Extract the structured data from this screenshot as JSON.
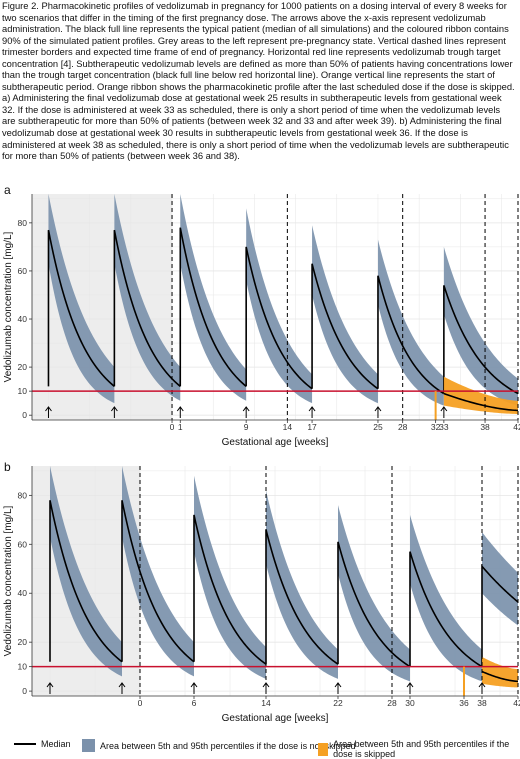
{
  "caption": "Figure 2. Pharmacokinetic profiles of vedolizumab in pregnancy for 1000 patients on a dosing interval of every 8 weeks for two scenarios that differ in the timing of the first pregnancy dose. The arrows above the x-axis represent vedolizumab administration. The black full line represents the typical patient (median of all simulations) and the coloured ribbon contains 90% of the simulated patient profiles. Grey areas to the left represent pre-pregnancy state. Vertical dashed lines represent trimester borders and expected time frame of end of pregnancy. Horizontal red line represents vedolizumab trough target concentration [4]. Subtherapeutic vedolizumab levels are defined as more than 50% of patients having concentrations lower than the trough target concentration (black full line below red horizontal line). Orange vertical line represents the start of subtherapeutic period. Orange ribbon shows the pharmacokinetic profile after the last scheduled dose if the dose is skipped. a) Administering the final vedolizumab dose at gestational week 25 results in subtherapeutic levels from gestational week 32. If the dose is administered at week 33 as scheduled, there is only a short period of time when the vedolizumab levels are subtherapeutic for more than 50% of patients (between week 32 and 33 and after week 39). b) Administering the final vedolizumab dose at gestational week 30 results in subtherapeutic levels from gestational week 36. If the dose is administered at week 38 as scheduled, there is only a short period of time when the vedolizumab levels are subtherapeutic for more than 50% of patients (between week 36 and 38).",
  "colors": {
    "band": "#7b91ab",
    "orange": "#f5a023",
    "target": "#c8102e",
    "grid": "#e6e6e6",
    "pre": "#ededed"
  },
  "legend": {
    "median": "Median",
    "band": "Area between 5th and 95th percentiles if the dose is not skipped",
    "skipped": "Area between 5th and 95th percentiles if the dose is skipped"
  },
  "chart_data": [
    {
      "panel": "a",
      "type": "line",
      "xlabel": "Gestational age [weeks]",
      "ylabel": "Vedolizumab concentration [mg/L]",
      "xlim": [
        -17,
        42
      ],
      "ylim": [
        -2,
        92
      ],
      "yticks": [
        0,
        10,
        20,
        40,
        60,
        80
      ],
      "xticks": [
        0,
        1,
        9,
        14,
        17,
        25,
        28,
        32,
        33,
        38,
        42
      ],
      "pre_pregnancy_end": 0,
      "dashed_lines": [
        0,
        14,
        28,
        38,
        42
      ],
      "target": 10,
      "doses": [
        -15,
        -7,
        1,
        9,
        17,
        25,
        33
      ],
      "dose_levels": [
        {
          "peak": 77,
          "trough": 12,
          "upper_peak": 92,
          "upper_trough": 20,
          "lower_peak": 63,
          "lower_trough": 5
        },
        {
          "peak": 77,
          "trough": 12,
          "upper_peak": 92,
          "upper_trough": 20,
          "lower_peak": 63,
          "lower_trough": 6
        },
        {
          "peak": 78,
          "trough": 12,
          "upper_peak": 92,
          "upper_trough": 19,
          "lower_peak": 63,
          "lower_trough": 6
        },
        {
          "peak": 70,
          "trough": 11,
          "upper_peak": 86,
          "upper_trough": 17,
          "lower_peak": 56,
          "lower_trough": 5
        },
        {
          "peak": 63,
          "trough": 11,
          "upper_peak": 79,
          "upper_trough": 17,
          "lower_peak": 50,
          "lower_trough": 5
        },
        {
          "peak": 58,
          "trough": 9,
          "upper_peak": 73,
          "upper_trough": 16,
          "lower_peak": 46,
          "lower_trough": 4
        },
        {
          "peak": 54,
          "trough": 11,
          "upper_peak": 70,
          "upper_trough": 18,
          "lower_peak": 42,
          "lower_trough": 5
        }
      ],
      "subtherapeutic_start": 32,
      "skipped_profile": {
        "start": 33,
        "end": 42,
        "median_start": 9,
        "median_end": 2,
        "upper_start": 16,
        "upper_end": 6,
        "lower_start": 4,
        "lower_end": 0.5
      }
    },
    {
      "panel": "b",
      "type": "line",
      "xlabel": "Gestational age [weeks]",
      "ylabel": "Vedolizumab concentration [mg/L]",
      "xlim": [
        -12,
        42
      ],
      "ylim": [
        -2,
        92
      ],
      "yticks": [
        0,
        10,
        20,
        40,
        60,
        80
      ],
      "xticks": [
        0,
        6,
        14,
        22,
        28,
        30,
        36,
        38,
        42
      ],
      "pre_pregnancy_end": 0,
      "dashed_lines": [
        0,
        14,
        28,
        38,
        42
      ],
      "target": 10,
      "doses": [
        -10,
        -2,
        6,
        14,
        22,
        30,
        38
      ],
      "dose_levels": [
        {
          "peak": 78,
          "trough": 12,
          "upper_peak": 92,
          "upper_trough": 20,
          "lower_peak": 63,
          "lower_trough": 6
        },
        {
          "peak": 78,
          "trough": 12,
          "upper_peak": 92,
          "upper_trough": 20,
          "lower_peak": 63,
          "lower_trough": 6
        },
        {
          "peak": 72,
          "trough": 11,
          "upper_peak": 88,
          "upper_trough": 18,
          "lower_peak": 57,
          "lower_trough": 5
        },
        {
          "peak": 66,
          "trough": 11,
          "upper_peak": 82,
          "upper_trough": 17,
          "lower_peak": 52,
          "lower_trough": 5
        },
        {
          "peak": 61,
          "trough": 10,
          "upper_peak": 76,
          "upper_trough": 17,
          "lower_peak": 48,
          "lower_trough": 4
        },
        {
          "peak": 57,
          "trough": 10,
          "upper_peak": 72,
          "upper_trough": 17,
          "lower_peak": 44,
          "lower_trough": 4
        },
        {
          "peak": 51,
          "trough": 26,
          "upper_peak": 65,
          "upper_trough": 36,
          "lower_peak": 40,
          "lower_trough": 18
        }
      ],
      "subtherapeutic_start": 36,
      "skipped_profile": {
        "start": 38,
        "end": 42,
        "median_start": 8,
        "median_end": 4,
        "upper_start": 14,
        "upper_end": 9,
        "lower_start": 3,
        "lower_end": 1.5
      }
    }
  ]
}
